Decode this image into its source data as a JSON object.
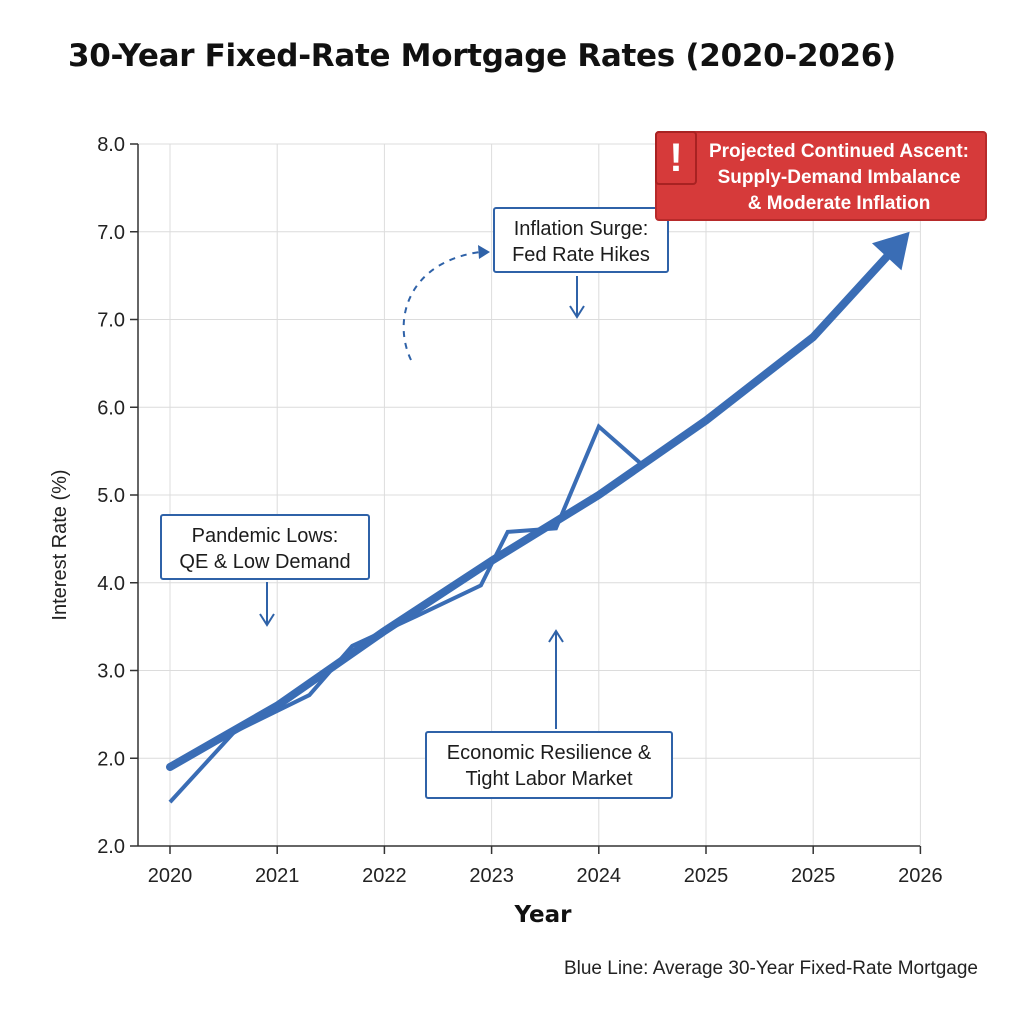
{
  "title": "30-Year Fixed-Rate Mortgage Rates (2020-2026)",
  "footnote": "Blue Line: Average 30-Year Fixed-Rate Mortgage",
  "colors": {
    "line": "#3a6db5",
    "callout_border": "#2f62a8",
    "alert": "#d63a3a",
    "grid": "#dcdcdc"
  },
  "annotations": {
    "pandemic": {
      "line1": "Pandemic Lows:",
      "line2": "QE & Low Demand"
    },
    "inflation": {
      "line1": "Inflation Surge:",
      "line2": "Fed Rate Hikes"
    },
    "resilience": {
      "line1": "Economic Resilience &",
      "line2": "Tight Labor Market"
    },
    "projected": {
      "icon": "exclamation-icon",
      "line1": "Projected Continued Ascent:",
      "line2": "Supply-Demand Imbalance",
      "line3": "& Moderate Inflation"
    }
  },
  "chart_data": {
    "type": "line",
    "title": "30-Year Fixed-Rate Mortgage Rates (2020-2026)",
    "xlabel": "Year",
    "ylabel": "Interest Rate (%)",
    "x_tick_labels": [
      "2020",
      "2021",
      "2022",
      "2023",
      "2024",
      "2025",
      "2025",
      "2026"
    ],
    "y_tick_labels": [
      "2.0",
      "2.0",
      "3.0",
      "4.0",
      "5.0",
      "6.0",
      "7.0",
      "7.0",
      "8.0"
    ],
    "xlim": [
      2020,
      2027.3
    ],
    "ylim": [
      1,
      9
    ],
    "grid": true,
    "series": [
      {
        "style": "thick-trend-arrow",
        "x": [
          2020,
          2021,
          2022,
          2023,
          2024,
          2025,
          2026,
          2026.9
        ],
        "y": [
          1.9,
          2.6,
          3.45,
          4.25,
          5.0,
          5.85,
          6.8,
          8.0
        ]
      },
      {
        "style": "thin-actual",
        "x": [
          2020,
          2020.6,
          2021.3,
          2021.7,
          2022.3,
          2022.9,
          2023.15,
          2023.6,
          2024.0,
          2024.4
        ],
        "y": [
          1.5,
          2.3,
          2.72,
          3.28,
          3.62,
          3.97,
          4.58,
          4.62,
          5.78,
          5.35
        ]
      }
    ]
  }
}
